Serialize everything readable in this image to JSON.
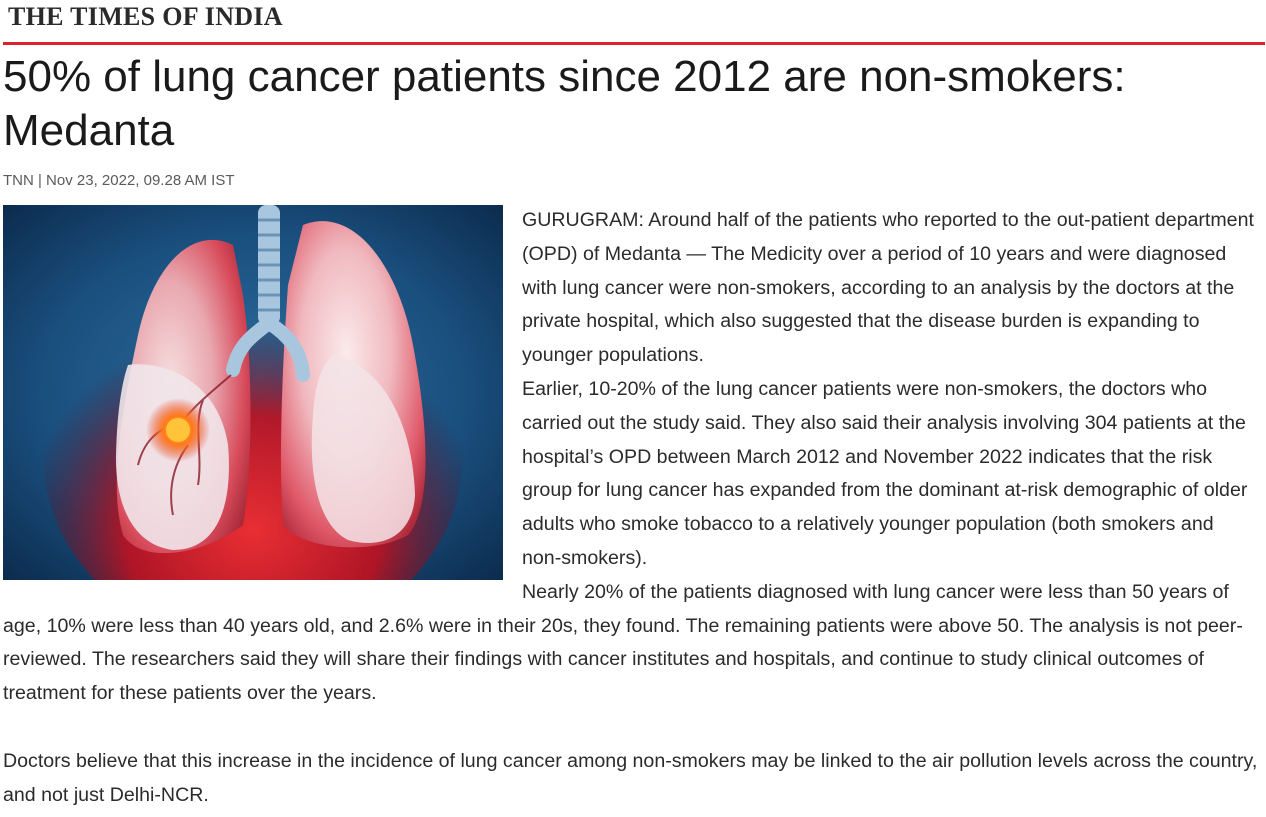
{
  "masthead": "THE TIMES OF INDIA",
  "brand_color": "#d9232d",
  "article": {
    "headline": "50% of lung cancer patients since 2012 are non-smokers: Medanta",
    "byline": "TNN | Nov 23, 2022, 09.28 AM IST",
    "image_subject": "lungs-illustration",
    "paragraphs": [
      "GURUGRAM: Around half of the patients who reported to the out-patient department (OPD) of Medanta — The Medicity over a period of 10 years and were diagnosed with lung cancer were non-smokers, according to an analysis by the doctors at the private hospital, which also suggested that the disease burden is expanding to younger populations.",
      "Earlier, 10-20% of the lung cancer patients were non-smokers, the doctors who carried out the study said. They also said their analysis involving 304 patients at the hospital’s OPD between March 2012 and November 2022 indicates that the risk group for lung cancer has expanded from the dominant at-risk demographic of older adults who smoke tobacco to a relatively younger population (both smokers and non-smokers).",
      "Nearly 20% of the patients diagnosed with lung cancer were less than 50 years of age, 10% were less than 40 years old, and 2.6% were in their 20s, they found. The remaining patients were above 50. The analysis is not peer-reviewed. The researchers said they will share their findings with cancer institutes and hospitals, and continue to study clinical outcomes of treatment for these patients over the years.",
      "Doctors believe that this increase in the incidence of lung cancer among non-smokers may be linked to the air pollution levels across the country, and not just Delhi-NCR."
    ]
  }
}
